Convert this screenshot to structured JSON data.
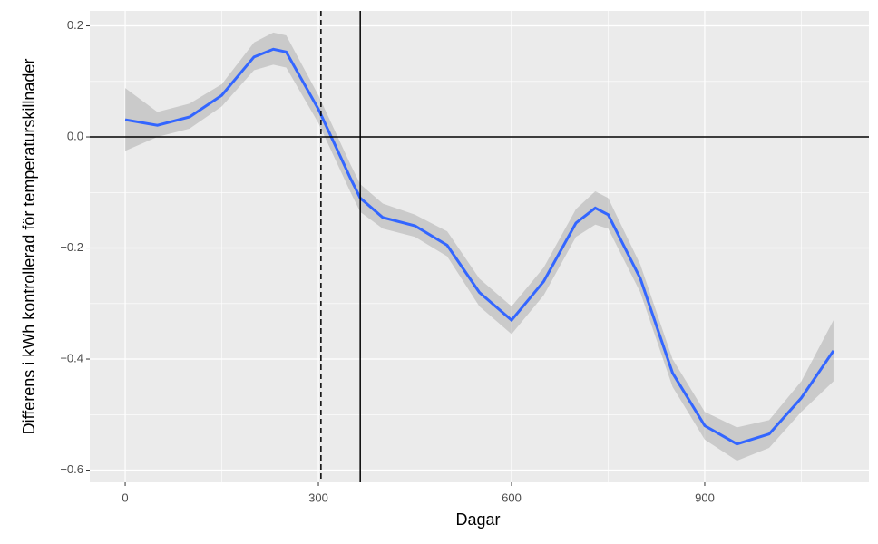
{
  "chart_data": {
    "type": "line",
    "xlabel": "Dagar",
    "ylabel": "Differens i kWh kontrollerad för temperaturskillnader",
    "x": [
      0,
      50,
      100,
      150,
      200,
      230,
      250,
      300,
      350,
      365,
      400,
      450,
      500,
      550,
      600,
      650,
      700,
      730,
      750,
      800,
      850,
      900,
      950,
      1000,
      1050,
      1100
    ],
    "series": [
      {
        "color": "#3366ff",
        "values": [
          0.031,
          0.021,
          0.036,
          0.075,
          0.144,
          0.158,
          0.153,
          0.05,
          -0.075,
          -0.11,
          -0.145,
          -0.16,
          -0.195,
          -0.28,
          -0.33,
          -0.26,
          -0.155,
          -0.128,
          -0.14,
          -0.255,
          -0.425,
          -0.52,
          -0.553,
          -0.535,
          -0.47,
          -0.385
        ],
        "lower": [
          -0.025,
          0.0,
          0.015,
          0.055,
          0.12,
          0.13,
          0.125,
          0.025,
          -0.1,
          -0.135,
          -0.165,
          -0.18,
          -0.215,
          -0.305,
          -0.355,
          -0.285,
          -0.18,
          -0.158,
          -0.165,
          -0.28,
          -0.45,
          -0.545,
          -0.583,
          -0.56,
          -0.495,
          -0.44
        ],
        "upper": [
          0.088,
          0.045,
          0.06,
          0.095,
          0.17,
          0.188,
          0.183,
          0.075,
          -0.05,
          -0.085,
          -0.12,
          -0.14,
          -0.17,
          -0.255,
          -0.305,
          -0.235,
          -0.13,
          -0.098,
          -0.11,
          -0.23,
          -0.4,
          -0.495,
          -0.523,
          -0.51,
          -0.44,
          -0.33
        ],
        "band_color": "#999999"
      }
    ],
    "xlim": [
      -55,
      1155
    ],
    "ylim": [
      -0.622,
      0.227
    ],
    "xticks": [
      0,
      300,
      600,
      900
    ],
    "yticks": [
      0.2,
      {
        "value": 0,
        "label": "0.0"
      },
      {
        "value": -0.2,
        "label": "−0.2"
      },
      {
        "value": -0.4,
        "label": "−0.4"
      },
      {
        "value": -0.6,
        "label": "−0.6"
      }
    ],
    "x_minor_grid": [
      150,
      450,
      750,
      1050
    ],
    "y_minor_grid": [
      0.1,
      -0.1,
      -0.3,
      -0.5
    ],
    "vlines": [
      {
        "x": 304,
        "dashed": true
      },
      {
        "x": 365,
        "dashed": false
      }
    ],
    "hline": 0,
    "grid": true
  }
}
